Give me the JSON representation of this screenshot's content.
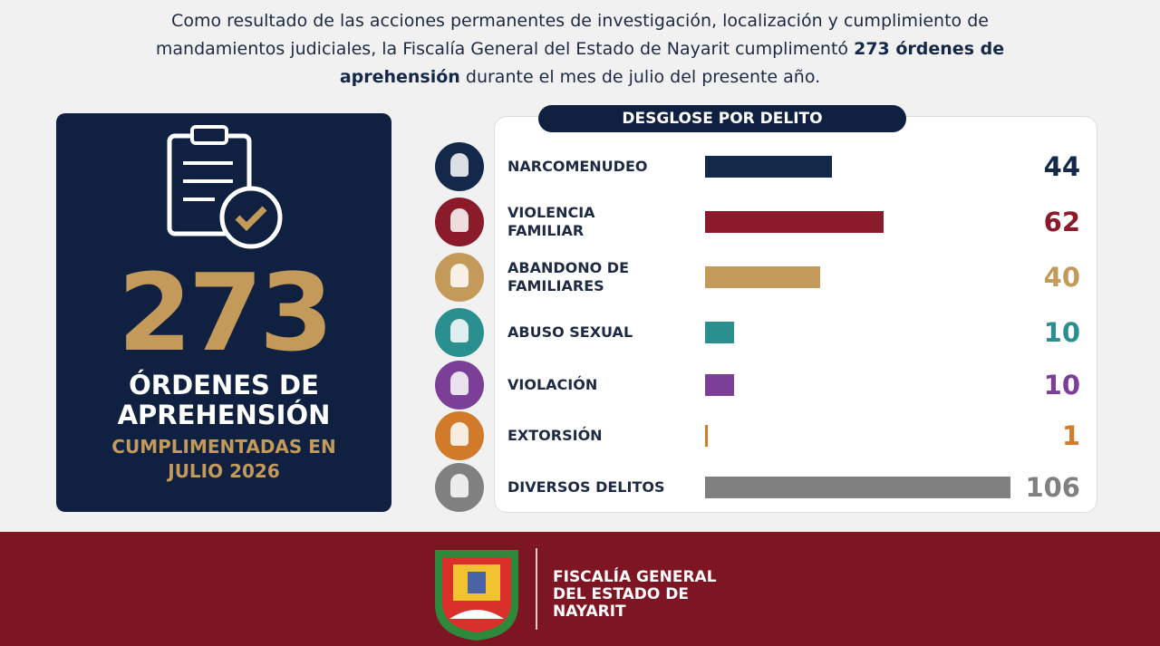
{
  "intro": {
    "text_before": "Como resultado de las acciones permanentes de investigación, localización y cumplimiento de mandamientos judiciales, la Fiscalía General del Estado de Nayarit cumplimentó",
    "bold": "273 órdenes de aprehensión",
    "text_after": "durante el mes de julio del presente año."
  },
  "summary": {
    "number": "273",
    "label": "ÓRDENES DE APREHENSIÓN",
    "sublabel": "CUMPLIMENTADAS EN JULIO 2026"
  },
  "chart_data": {
    "type": "hbar",
    "title": "DESGLOSE POR DELITO",
    "categories": [
      "NARCOMENUDEO",
      "VIOLENCIA FAMILIAR",
      "ABANDONO DE FAMILIARES",
      "ABUSO SEXUAL",
      "VIOLACIÓN",
      "EXTORSIÓN",
      "DIVERSOS DELITOS"
    ],
    "values": [
      44,
      62,
      40,
      10,
      10,
      1,
      106
    ],
    "colors": [
      "#14284a",
      "#8b1a2b",
      "#c49a5a",
      "#2a8f8f",
      "#7b3f98",
      "#d07a2a",
      "#808080"
    ]
  },
  "footer": {
    "lines": [
      "FISCALÍA GENERAL",
      "DEL ESTADO DE",
      "NAYARIT"
    ]
  }
}
